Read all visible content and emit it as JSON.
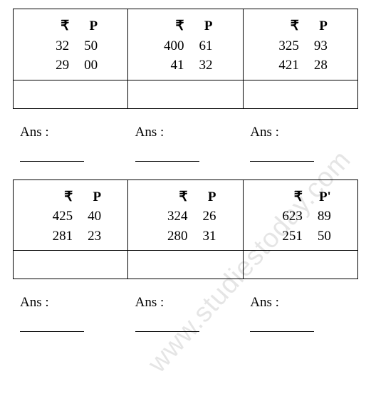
{
  "rupee_symbol": "₹",
  "paise_symbol": "P",
  "paise_symbol_quoted": "P",
  "ans_label": "Ans :",
  "watermark_text": "www.studiestoday.com",
  "blocks": [
    {
      "wide": false,
      "cells": [
        {
          "r1": "32",
          "p1": "50",
          "r2": "29",
          "p2": "00"
        },
        {
          "r1": "400",
          "p1": "61",
          "r2": "41",
          "p2": "32"
        },
        {
          "r1": "325",
          "p1": "93",
          "r2": "421",
          "p2": "28"
        }
      ]
    },
    {
      "wide": true,
      "cells": [
        {
          "r1": "425",
          "p1": "40",
          "r2": "281",
          "p2": "23"
        },
        {
          "r1": "324",
          "p1": "26",
          "r2": "280",
          "p2": "31"
        },
        {
          "r1": "623",
          "p1": "89",
          "r2": "251",
          "p2": "50",
          "p_quoted": true
        }
      ]
    }
  ]
}
